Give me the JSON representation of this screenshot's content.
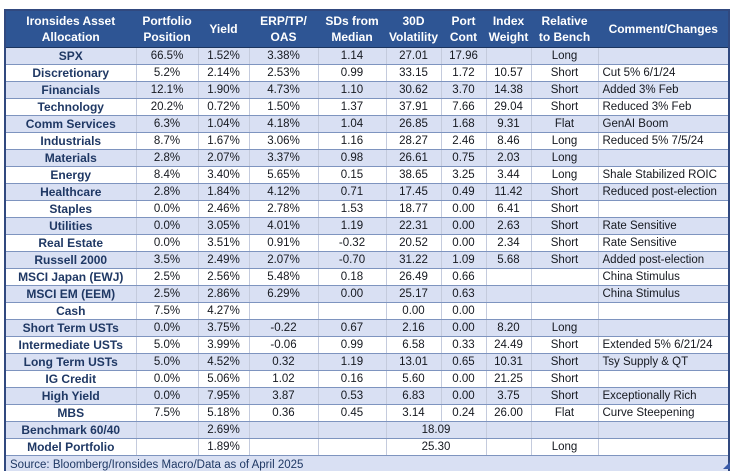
{
  "colors": {
    "header_bg": "#2E5594",
    "band_row_bg": "#D9E0F3",
    "label_text": "#1F3864",
    "grid_horizontal": "#7E94BF",
    "grid_vertical": "#C4CBDD",
    "outer_border": "#31497F"
  },
  "table": {
    "headers": [
      {
        "key": "asset",
        "l1": "Ironsides Asset",
        "l2": "Allocation"
      },
      {
        "key": "position",
        "l1": "Portfolio",
        "l2": "Position"
      },
      {
        "key": "yield",
        "l1": "",
        "l2": "Yield"
      },
      {
        "key": "erp-tp-oas",
        "l1": "ERP/TP/",
        "l2": "OAS"
      },
      {
        "key": "sds-from-median",
        "l1": "SDs from",
        "l2": "Median"
      },
      {
        "key": "30d-volatility",
        "l1": "30D",
        "l2": "Volatility"
      },
      {
        "key": "port-cont",
        "l1": "Port",
        "l2": "Cont"
      },
      {
        "key": "index-weight",
        "l1": "Index",
        "l2": "Weight"
      },
      {
        "key": "relative-to-bench",
        "l1": "Relative",
        "l2": "to Bench"
      },
      {
        "key": "comment",
        "l1": "",
        "l2": "Comment/Changes"
      }
    ],
    "column_keys": [
      "position",
      "yield",
      "erp-tp-oas",
      "sds-from-median",
      "30d-volatility",
      "port-cont",
      "index-weight",
      "relative-to-bench",
      "comment"
    ],
    "rows": [
      {
        "label": "SPX",
        "cells": [
          "66.5%",
          "1.52%",
          "3.38%",
          "1.14",
          "27.01",
          "17.96",
          "",
          "Long",
          ""
        ]
      },
      {
        "label": "Discretionary",
        "cells": [
          "5.2%",
          "2.14%",
          "2.53%",
          "0.99",
          "33.15",
          "1.72",
          "10.57",
          "Short",
          "Cut 5% 6/1/24"
        ]
      },
      {
        "label": "Financials",
        "cells": [
          "12.1%",
          "1.90%",
          "4.73%",
          "1.10",
          "30.62",
          "3.70",
          "14.38",
          "Short",
          "Added 3% Feb"
        ]
      },
      {
        "label": "Technology",
        "cells": [
          "20.2%",
          "0.72%",
          "1.50%",
          "1.37",
          "37.91",
          "7.66",
          "29.04",
          "Short",
          "Reduced 3% Feb"
        ]
      },
      {
        "label": "Comm Services",
        "cells": [
          "6.3%",
          "1.04%",
          "4.18%",
          "1.04",
          "26.85",
          "1.68",
          "9.31",
          "Flat",
          "GenAI Boom"
        ]
      },
      {
        "label": "Industrials",
        "cells": [
          "8.7%",
          "1.67%",
          "3.06%",
          "1.16",
          "28.27",
          "2.46",
          "8.46",
          "Long",
          "Reduced 5% 7/5/24"
        ]
      },
      {
        "label": "Materials",
        "cells": [
          "2.8%",
          "2.07%",
          "3.37%",
          "0.98",
          "26.61",
          "0.75",
          "2.03",
          "Long",
          ""
        ]
      },
      {
        "label": "Energy",
        "cells": [
          "8.4%",
          "3.40%",
          "5.65%",
          "0.15",
          "38.65",
          "3.25",
          "3.44",
          "Long",
          "Shale Stabilized ROIC"
        ]
      },
      {
        "label": "Healthcare",
        "cells": [
          "2.8%",
          "1.84%",
          "4.12%",
          "0.71",
          "17.45",
          "0.49",
          "11.42",
          "Short",
          "Reduced post-election"
        ]
      },
      {
        "label": "Staples",
        "cells": [
          "0.0%",
          "2.46%",
          "2.78%",
          "1.53",
          "18.77",
          "0.00",
          "6.41",
          "Short",
          ""
        ]
      },
      {
        "label": "Utilities",
        "cells": [
          "0.0%",
          "3.05%",
          "4.01%",
          "1.19",
          "22.31",
          "0.00",
          "2.63",
          "Short",
          "Rate Sensitive"
        ]
      },
      {
        "label": "Real Estate",
        "cells": [
          "0.0%",
          "3.51%",
          "0.91%",
          "-0.32",
          "20.52",
          "0.00",
          "2.34",
          "Short",
          "Rate Sensitive"
        ]
      },
      {
        "label": "Russell 2000",
        "cells": [
          "3.5%",
          "2.49%",
          "2.07%",
          "-0.70",
          "31.22",
          "1.09",
          "5.68",
          "Short",
          "Added post-election"
        ]
      },
      {
        "label": "MSCI Japan (EWJ)",
        "cells": [
          "2.5%",
          "2.56%",
          "5.48%",
          "0.18",
          "26.49",
          "0.66",
          "",
          "",
          "China Stimulus"
        ]
      },
      {
        "label": "MSCI EM (EEM)",
        "cells": [
          "2.5%",
          "2.86%",
          "6.29%",
          "0.00",
          "25.17",
          "0.63",
          "",
          "",
          "China Stimulus"
        ]
      },
      {
        "label": "Cash",
        "cells": [
          "7.5%",
          "4.27%",
          "",
          "",
          "0.00",
          "0.00",
          "",
          "",
          ""
        ]
      },
      {
        "label": "Short Term USTs",
        "cells": [
          "0.0%",
          "3.75%",
          "-0.22",
          "0.67",
          "2.16",
          "0.00",
          "8.20",
          "Long",
          ""
        ]
      },
      {
        "label": "Intermediate USTs",
        "cells": [
          "5.0%",
          "3.99%",
          "-0.06",
          "0.99",
          "6.58",
          "0.33",
          "24.49",
          "Short",
          "Extended 5% 6/21/24"
        ]
      },
      {
        "label": "Long Term USTs",
        "cells": [
          "5.0%",
          "4.52%",
          "0.32",
          "1.19",
          "13.01",
          "0.65",
          "10.31",
          "Short",
          "Tsy Supply & QT"
        ]
      },
      {
        "label": "IG Credit",
        "cells": [
          "0.0%",
          "5.06%",
          "1.02",
          "0.16",
          "5.60",
          "0.00",
          "21.25",
          "Short",
          ""
        ]
      },
      {
        "label": "High Yield",
        "cells": [
          "0.0%",
          "7.95%",
          "3.87",
          "0.53",
          "6.83",
          "0.00",
          "3.75",
          "Short",
          "Exceptionally Rich"
        ]
      },
      {
        "label": "MBS",
        "cells": [
          "7.5%",
          "5.18%",
          "0.36",
          "0.45",
          "3.14",
          "0.24",
          "26.00",
          "Flat",
          "Curve Steepening"
        ]
      },
      {
        "label": "Benchmark 60/40",
        "merged": true,
        "cells": [
          "",
          "2.69%",
          "",
          "",
          "18.09",
          "",
          "",
          ""
        ]
      },
      {
        "label": "Model Portfolio",
        "merged": true,
        "cells": [
          "",
          "1.89%",
          "",
          "",
          "25.30",
          "",
          "Long",
          ""
        ]
      }
    ],
    "source_note": "Source: Bloomberg/Ironsides Macro/Data as of April 2025"
  }
}
